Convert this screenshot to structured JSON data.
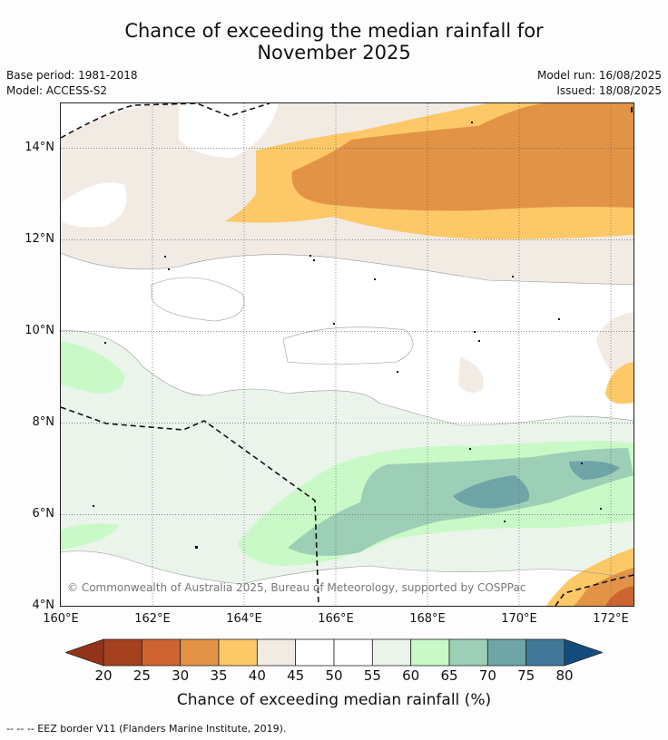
{
  "title_line1": "Chance of exceeding the median rainfall for",
  "title_line2": "November 2025",
  "meta": {
    "base_period": "Base period: 1981-2018",
    "model": "Model: ACCESS-S2",
    "model_run": "Model run: 16/08/2025",
    "issued": "Issued: 18/08/2025"
  },
  "map": {
    "lat_labels": [
      "14°N",
      "12°N",
      "10°N",
      "8°N",
      "6°N",
      "4°N"
    ],
    "lon_labels": [
      "160°E",
      "162°E",
      "164°E",
      "166°E",
      "168°E",
      "170°E",
      "172°E"
    ],
    "copyright": "© Commonwealth of Australia 2025, Bureau of Meteorology, supported by COSPPac"
  },
  "colorbar": {
    "ticks": [
      "20",
      "25",
      "30",
      "35",
      "40",
      "45",
      "50",
      "55",
      "60",
      "65",
      "70",
      "75",
      "80"
    ],
    "colors": [
      "#a6411f",
      "#cd6431",
      "#e29346",
      "#fdc867",
      "#f1ebe4",
      "#ffffff",
      "#ffffff",
      "#eaf4ea",
      "#c9f9c7",
      "#9ccfb5",
      "#6fa5a7",
      "#417898"
    ],
    "under_color": "#93331a",
    "over_color": "#154c7e",
    "label": "Chance of exceeding median rainfall (%)"
  },
  "footnote": "--  --  -- EEZ border V11 (Flanders Marine Institute, 2019)."
}
